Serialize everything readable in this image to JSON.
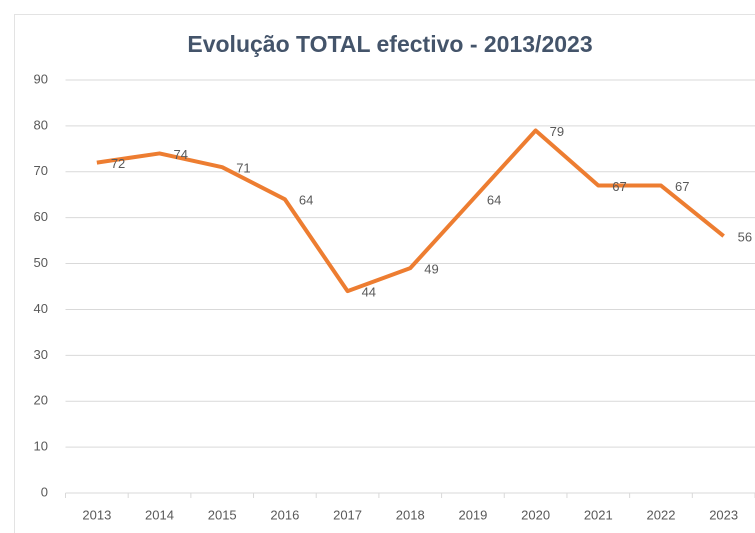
{
  "chart_data": {
    "type": "line",
    "title": "Evolução TOTAL efectivo - 2013/2023",
    "categories": [
      "2013",
      "2014",
      "2015",
      "2016",
      "2017",
      "2018",
      "2019",
      "2020",
      "2021",
      "2022",
      "2023"
    ],
    "series": [
      {
        "name": "TOTAL efectivo",
        "color": "#ed7d31",
        "values": [
          72,
          74,
          71,
          64,
          44,
          49,
          64,
          79,
          67,
          67,
          56
        ]
      }
    ],
    "ylim": [
      0,
      90
    ],
    "yticks": [
      0,
      10,
      20,
      30,
      40,
      50,
      60,
      70,
      80,
      90
    ],
    "grid": true,
    "data_labels": true
  }
}
